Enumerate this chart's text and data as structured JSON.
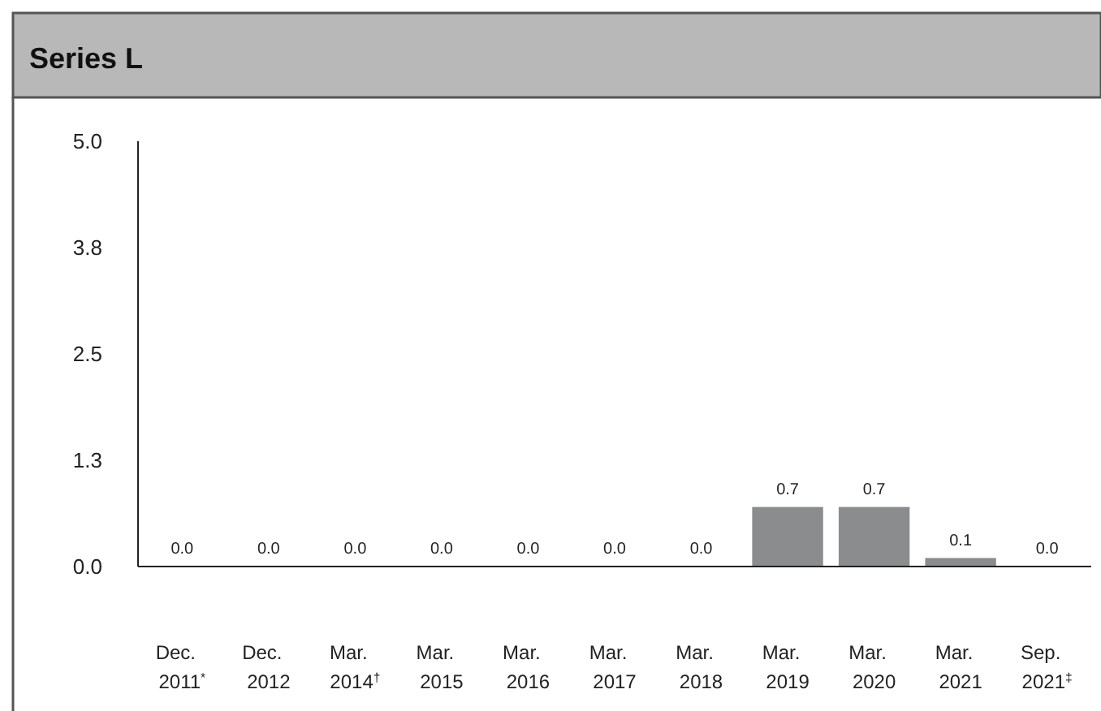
{
  "chart_data": {
    "type": "bar",
    "title": "Series L",
    "categories": [
      "Dec. 2011$^{*}$",
      "Dec. 2012",
      "Mar. 2014$^{†}$",
      "Mar. 2015",
      "Mar. 2016",
      "Mar. 2017",
      "Mar. 2018",
      "Mar. 2019",
      "Mar. 2020",
      "Mar. 2021",
      "Sep. 2021$^{‡}$"
    ],
    "values": [
      0,
      0,
      0,
      0,
      0,
      0,
      0,
      0.7,
      0.7,
      0.1,
      0
    ],
    "value_labels": [
      "0.0",
      "0.0",
      "0.0",
      "0.0",
      "0.0",
      "0.0",
      "0.0",
      "0.7",
      "0.7",
      "0.1",
      "0.0"
    ],
    "color": "#8a8c8e",
    "ylim": [
      0,
      5
    ],
    "yticks": [
      {
        "value": 0,
        "label": "0.0"
      },
      {
        "value": 1.25,
        "label": "1.3"
      },
      2.5,
      {
        "value": 3.75,
        "label": "3.8"
      },
      {
        "value": 5,
        "label": "5.0"
      }
    ]
  }
}
